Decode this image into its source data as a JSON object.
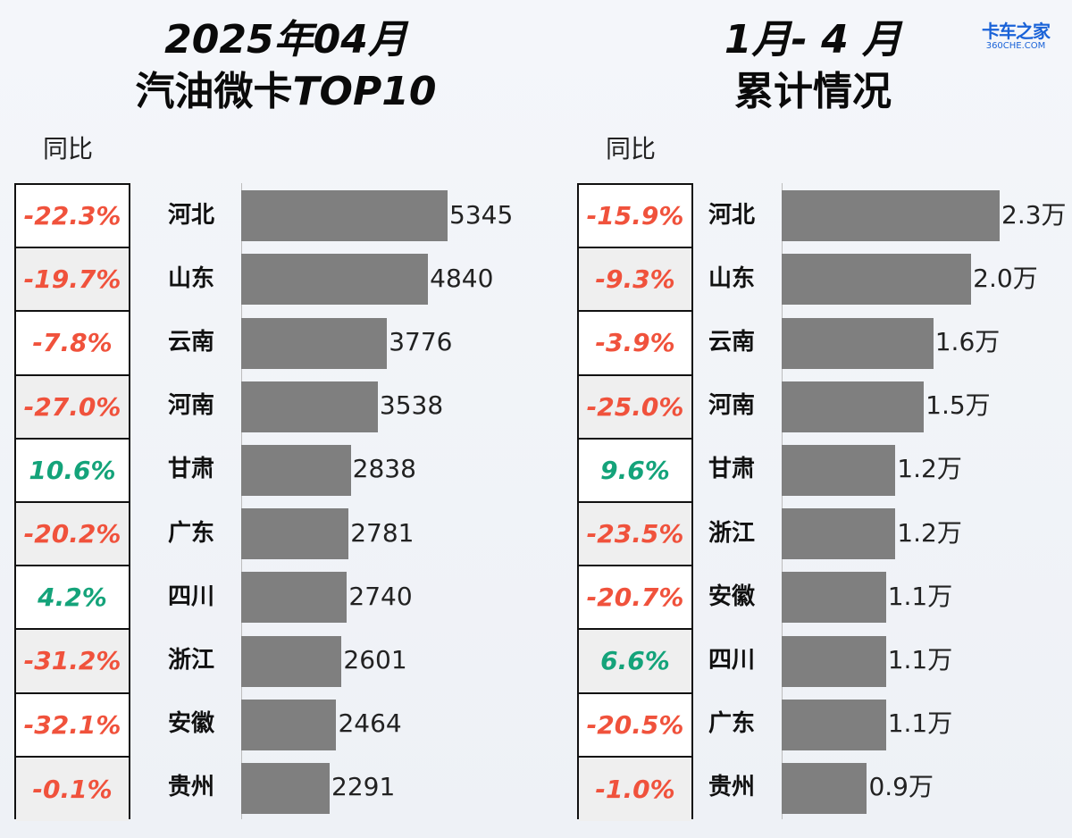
{
  "logo": {
    "main": "卡车之家",
    "sub": "360CHE.COM"
  },
  "chart_data": [
    {
      "type": "bar",
      "orientation": "horizontal",
      "title": "2025年04月",
      "subtitle_plain": "汽油微卡",
      "subtitle_italic": "TOP10",
      "yoy_header": "同比",
      "categories": [
        "河北",
        "山东",
        "云南",
        "河南",
        "甘肃",
        "广东",
        "四川",
        "浙江",
        "安徽",
        "贵州"
      ],
      "values": [
        5345,
        4840,
        3776,
        3538,
        2838,
        2781,
        2740,
        2601,
        2464,
        2291
      ],
      "value_labels": [
        "5345",
        "4840",
        "3776",
        "3538",
        "2838",
        "2781",
        "2740",
        "2601",
        "2464",
        "2291"
      ],
      "yoy": [
        "-22.3%",
        "-19.7%",
        "-7.8%",
        "-27.0%",
        "10.6%",
        "-20.2%",
        "4.2%",
        "-31.2%",
        "-32.1%",
        "-0.1%"
      ],
      "xlim": [
        0,
        5345
      ],
      "bar_color": "#7f7f7f",
      "neg_color": "#f0523c",
      "pos_color": "#14a37a"
    },
    {
      "type": "bar",
      "orientation": "horizontal",
      "title": "1月- 4 月",
      "subtitle": "累计情况",
      "yoy_header": "同比",
      "categories": [
        "河北",
        "山东",
        "云南",
        "河南",
        "甘肃",
        "浙江",
        "安徽",
        "四川",
        "广东",
        "贵州"
      ],
      "values": [
        2.3,
        2.0,
        1.6,
        1.5,
        1.2,
        1.2,
        1.1,
        1.1,
        1.1,
        0.9
      ],
      "value_labels": [
        "2.3万",
        "2.0万",
        "1.6万",
        "1.5万",
        "1.2万",
        "1.2万",
        "1.1万",
        "1.1万",
        "1.1万",
        "0.9万"
      ],
      "yoy": [
        "-15.9%",
        "-9.3%",
        "-3.9%",
        "-25.0%",
        "9.6%",
        "-23.5%",
        "-20.7%",
        "6.6%",
        "-20.5%",
        "-1.0%"
      ],
      "xlim": [
        0,
        2.3
      ],
      "bar_color": "#7f7f7f",
      "neg_color": "#f0523c",
      "pos_color": "#14a37a"
    }
  ]
}
